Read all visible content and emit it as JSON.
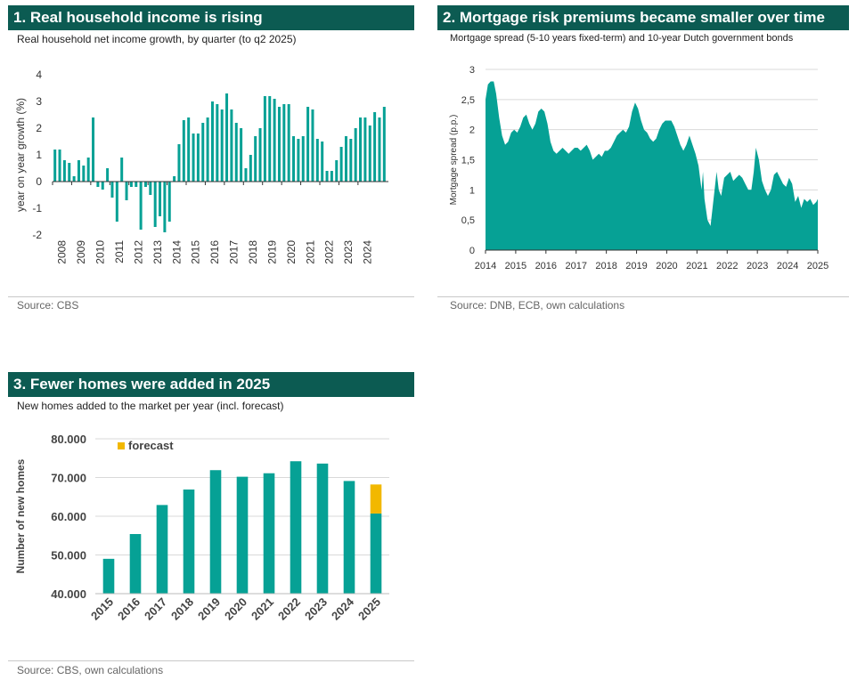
{
  "colors": {
    "header": "#0c5b52",
    "teal": "#06a195",
    "forecast": "#f2b800",
    "grid": "#d9d9d9",
    "axis": "#333333"
  },
  "panel1": {
    "title": "1. Real household income is rising",
    "subtitle": "Real household net income growth, by quarter (to q2 2025)",
    "source": "Source: CBS"
  },
  "panel2": {
    "title": "2. Mortgage risk premiums became smaller over time",
    "subtitle": "Mortgage spread (5-10 years fixed-term) and 10-year Dutch government bonds",
    "source": "Source: DNB, ECB, own calculations"
  },
  "panel3": {
    "title": "3. Fewer homes were added in 2025",
    "subtitle": "New homes added to the market per year (incl. forecast)",
    "source": "Source: CBS, own calculations"
  },
  "chart_data": [
    {
      "id": "income",
      "type": "bar",
      "ylabel": "year on year growth (%)",
      "ylim": [
        -2,
        4
      ],
      "yticks": [
        "-2",
        "-1",
        "0",
        "1",
        "2",
        "3",
        "4"
      ],
      "xtick_labels": [
        "2008",
        "2009",
        "2010",
        "2011",
        "2012",
        "2013",
        "2014",
        "2015",
        "2016",
        "2017",
        "2018",
        "2019",
        "2020",
        "2021",
        "2022",
        "2023",
        "2024"
      ],
      "quarters_start": "2008Q1",
      "values": [
        1.2,
        1.2,
        0.8,
        0.7,
        0.2,
        0.8,
        0.6,
        0.9,
        2.4,
        -0.2,
        -0.3,
        0.5,
        -0.6,
        -1.5,
        0.9,
        -0.7,
        -0.2,
        -0.2,
        -1.8,
        -0.2,
        -0.5,
        -1.7,
        -1.3,
        -1.9,
        -1.5,
        0.2,
        1.4,
        2.3,
        2.4,
        1.8,
        1.8,
        2.2,
        2.4,
        3.0,
        2.9,
        2.7,
        3.3,
        2.7,
        2.2,
        2.0,
        0.5,
        1.0,
        1.7,
        2.0,
        3.2,
        3.2,
        3.1,
        2.8,
        2.9,
        2.9,
        1.7,
        1.6,
        1.7,
        2.8,
        2.7,
        1.6,
        1.5,
        0.4,
        0.4,
        0.8,
        1.3,
        1.7,
        1.6,
        2.0,
        2.4,
        2.4,
        2.1,
        2.6,
        2.4,
        2.8
      ]
    },
    {
      "id": "spread",
      "type": "area",
      "ylabel": "Mortgage spread (p.p.)",
      "xlim": [
        2014,
        2025
      ],
      "ylim": [
        0,
        3
      ],
      "yticks": [
        "0",
        "0,5",
        "1",
        "1,5",
        "2",
        "2,5",
        "3"
      ],
      "xtick_labels": [
        "2014",
        "2015",
        "2016",
        "2017",
        "2018",
        "2019",
        "2020",
        "2021",
        "2022",
        "2023",
        "2024",
        "2025"
      ],
      "points": [
        [
          2014.0,
          2.5
        ],
        [
          2014.08,
          2.75
        ],
        [
          2014.17,
          2.8
        ],
        [
          2014.27,
          2.8
        ],
        [
          2014.35,
          2.6
        ],
        [
          2014.45,
          2.2
        ],
        [
          2014.55,
          1.9
        ],
        [
          2014.65,
          1.75
        ],
        [
          2014.75,
          1.8
        ],
        [
          2014.85,
          1.95
        ],
        [
          2014.95,
          2.0
        ],
        [
          2015.05,
          1.95
        ],
        [
          2015.15,
          2.05
        ],
        [
          2015.25,
          2.2
        ],
        [
          2015.35,
          2.25
        ],
        [
          2015.45,
          2.1
        ],
        [
          2015.55,
          2.0
        ],
        [
          2015.65,
          2.1
        ],
        [
          2015.75,
          2.3
        ],
        [
          2015.85,
          2.35
        ],
        [
          2015.95,
          2.3
        ],
        [
          2016.05,
          2.1
        ],
        [
          2016.15,
          1.8
        ],
        [
          2016.25,
          1.65
        ],
        [
          2016.35,
          1.6
        ],
        [
          2016.45,
          1.65
        ],
        [
          2016.55,
          1.7
        ],
        [
          2016.65,
          1.65
        ],
        [
          2016.75,
          1.6
        ],
        [
          2016.85,
          1.65
        ],
        [
          2016.95,
          1.7
        ],
        [
          2017.05,
          1.7
        ],
        [
          2017.15,
          1.65
        ],
        [
          2017.25,
          1.7
        ],
        [
          2017.35,
          1.75
        ],
        [
          2017.45,
          1.65
        ],
        [
          2017.55,
          1.5
        ],
        [
          2017.65,
          1.55
        ],
        [
          2017.75,
          1.6
        ],
        [
          2017.85,
          1.55
        ],
        [
          2017.95,
          1.65
        ],
        [
          2018.05,
          1.65
        ],
        [
          2018.15,
          1.7
        ],
        [
          2018.25,
          1.8
        ],
        [
          2018.35,
          1.9
        ],
        [
          2018.45,
          1.95
        ],
        [
          2018.55,
          2.0
        ],
        [
          2018.65,
          1.95
        ],
        [
          2018.75,
          2.05
        ],
        [
          2018.85,
          2.3
        ],
        [
          2018.95,
          2.45
        ],
        [
          2019.05,
          2.35
        ],
        [
          2019.15,
          2.15
        ],
        [
          2019.25,
          2.0
        ],
        [
          2019.35,
          1.95
        ],
        [
          2019.45,
          1.85
        ],
        [
          2019.55,
          1.8
        ],
        [
          2019.65,
          1.85
        ],
        [
          2019.75,
          2.0
        ],
        [
          2019.85,
          2.1
        ],
        [
          2019.95,
          2.15
        ],
        [
          2020.05,
          2.15
        ],
        [
          2020.15,
          2.15
        ],
        [
          2020.25,
          2.05
        ],
        [
          2020.35,
          1.9
        ],
        [
          2020.45,
          1.75
        ],
        [
          2020.55,
          1.65
        ],
        [
          2020.65,
          1.75
        ],
        [
          2020.75,
          1.9
        ],
        [
          2020.85,
          1.75
        ],
        [
          2020.95,
          1.6
        ],
        [
          2021.05,
          1.4
        ],
        [
          2021.15,
          1.0
        ],
        [
          2021.2,
          1.3
        ],
        [
          2021.25,
          0.85
        ],
        [
          2021.35,
          0.5
        ],
        [
          2021.45,
          0.4
        ],
        [
          2021.55,
          0.85
        ],
        [
          2021.65,
          1.3
        ],
        [
          2021.72,
          1.0
        ],
        [
          2021.8,
          0.9
        ],
        [
          2021.9,
          1.2
        ],
        [
          2022.0,
          1.25
        ],
        [
          2022.1,
          1.3
        ],
        [
          2022.2,
          1.15
        ],
        [
          2022.3,
          1.2
        ],
        [
          2022.4,
          1.25
        ],
        [
          2022.5,
          1.2
        ],
        [
          2022.6,
          1.1
        ],
        [
          2022.7,
          1.0
        ],
        [
          2022.8,
          1.0
        ],
        [
          2022.88,
          1.3
        ],
        [
          2022.95,
          1.7
        ],
        [
          2023.05,
          1.5
        ],
        [
          2023.15,
          1.15
        ],
        [
          2023.25,
          1.0
        ],
        [
          2023.35,
          0.9
        ],
        [
          2023.45,
          1.0
        ],
        [
          2023.55,
          1.25
        ],
        [
          2023.65,
          1.3
        ],
        [
          2023.75,
          1.2
        ],
        [
          2023.85,
          1.1
        ],
        [
          2023.95,
          1.05
        ],
        [
          2024.05,
          1.2
        ],
        [
          2024.15,
          1.1
        ],
        [
          2024.25,
          0.8
        ],
        [
          2024.35,
          0.9
        ],
        [
          2024.45,
          0.7
        ],
        [
          2024.55,
          0.85
        ],
        [
          2024.65,
          0.8
        ],
        [
          2024.75,
          0.85
        ],
        [
          2024.85,
          0.75
        ],
        [
          2024.95,
          0.8
        ],
        [
          2025.0,
          0.85
        ]
      ]
    },
    {
      "id": "homes",
      "type": "bar",
      "ylabel": "Number of new homes",
      "ylim": [
        40000,
        80000
      ],
      "yticks": [
        "40.000",
        "50.000",
        "60.000",
        "70.000",
        "80.000"
      ],
      "legend": "forecast",
      "categories": [
        "2015",
        "2016",
        "2017",
        "2018",
        "2019",
        "2020",
        "2021",
        "2022",
        "2023",
        "2024",
        "2025"
      ],
      "values": [
        49000,
        55400,
        62900,
        66900,
        71900,
        70200,
        71100,
        74200,
        73600,
        69100,
        60700
      ],
      "forecast": [
        0,
        0,
        0,
        0,
        0,
        0,
        0,
        0,
        0,
        0,
        7500
      ]
    }
  ]
}
